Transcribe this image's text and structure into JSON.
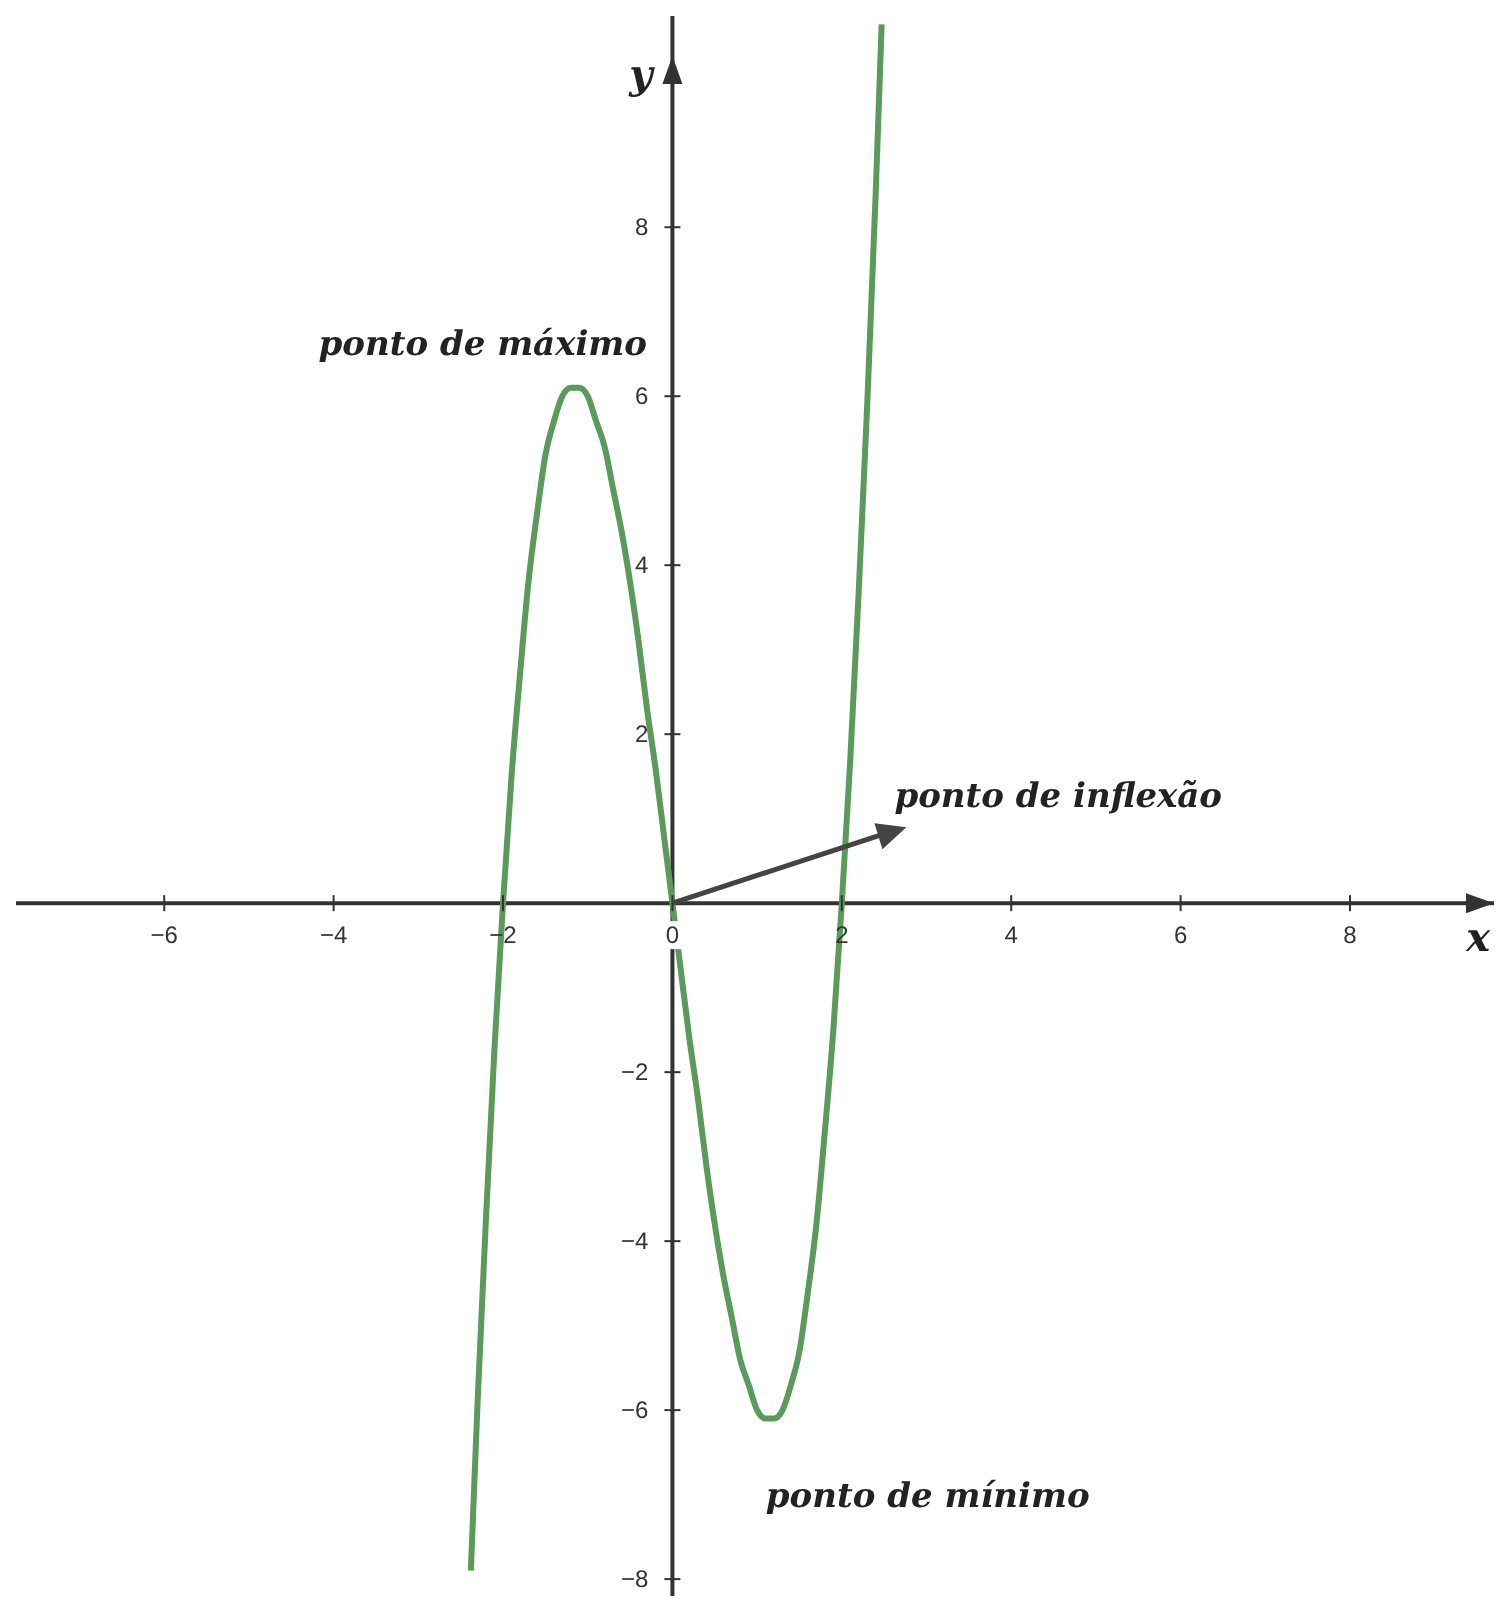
{
  "chart_data": {
    "type": "line",
    "xlabel": "x",
    "ylabel": "y",
    "x": [
      -2.38,
      -2.3,
      -2.2,
      -2.1,
      -2.0,
      -1.9,
      -1.8,
      -1.7,
      -1.6,
      -1.5,
      -1.4,
      -1.3,
      -1.2,
      -1.1,
      -1.0,
      -0.9,
      -0.8,
      -0.7,
      -0.6,
      -0.5,
      -0.4,
      -0.3,
      -0.2,
      -0.1,
      0,
      0.1,
      0.2,
      0.3,
      0.4,
      0.5,
      0.6,
      0.7,
      0.8,
      0.9,
      1.0,
      1.1,
      1.2,
      1.3,
      1.4,
      1.5,
      1.6,
      1.7,
      1.8,
      1.9,
      2.0,
      2.1,
      2.2,
      2.3,
      2.4,
      2.47
    ],
    "series": [
      {
        "color": "#5a9a5a",
        "values": [
          -7.9,
          -5.9,
          -3.7,
          -1.7,
          0,
          1.5,
          2.7,
          3.8,
          4.6,
          5.3,
          5.7,
          6.0,
          6.1,
          6.1,
          6.0,
          5.7,
          5.4,
          4.9,
          4.4,
          3.8,
          3.1,
          2.3,
          1.6,
          0.8,
          0,
          -0.8,
          -1.6,
          -2.3,
          -3.1,
          -3.8,
          -4.4,
          -4.9,
          -5.4,
          -5.7,
          -6.0,
          -6.1,
          -6.1,
          -6.0,
          -5.7,
          -5.3,
          -4.6,
          -3.8,
          -2.7,
          -1.5,
          0,
          1.7,
          3.7,
          5.9,
          8.4,
          10.4
        ]
      }
    ],
    "xlim": [
      -7.75,
      9.7
    ],
    "ylim": [
      -8.2,
      10.5
    ],
    "xticks": [
      -6,
      -4,
      -2,
      0,
      2,
      4,
      6,
      8
    ],
    "yticks": [
      -8,
      -6,
      -4,
      -2,
      2,
      4,
      6,
      8
    ],
    "grid": false,
    "legend": false,
    "annotations": [
      {
        "text": "ponto de máximo",
        "x": -1.15,
        "y": 6.2
      },
      {
        "text": "ponto de inflexão",
        "x": 0,
        "y": 0
      },
      {
        "text": "ponto de mínimo",
        "x": 1.15,
        "y": -6.2
      }
    ]
  }
}
